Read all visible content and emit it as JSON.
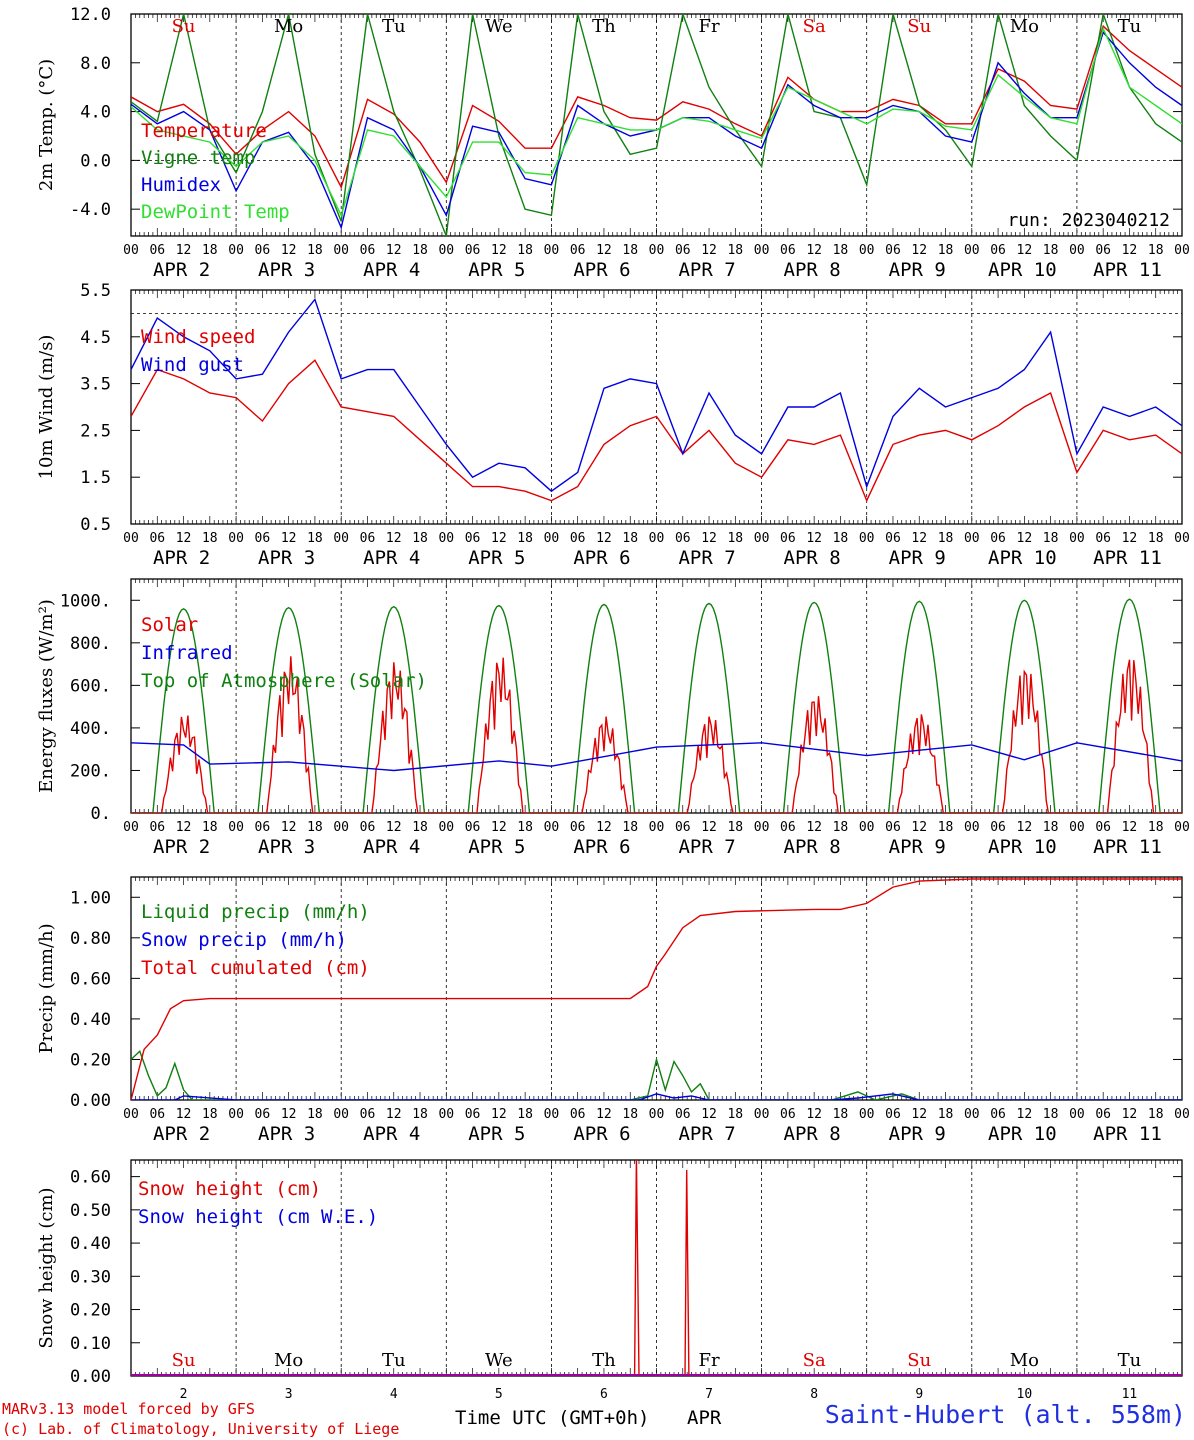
{
  "colors": {
    "red": "#e00000",
    "green": "#108010",
    "blue": "#0000e0",
    "lightgreen": "#30e030",
    "black": "#000000",
    "station": "#2030e0"
  },
  "days": [
    {
      "abbr": "Su",
      "weekend": true
    },
    {
      "abbr": "Mo",
      "weekend": false
    },
    {
      "abbr": "Tu",
      "weekend": false
    },
    {
      "abbr": "We",
      "weekend": false
    },
    {
      "abbr": "Th",
      "weekend": false
    },
    {
      "abbr": "Fr",
      "weekend": false
    },
    {
      "abbr": "Sa",
      "weekend": true
    },
    {
      "abbr": "Su",
      "weekend": true
    },
    {
      "abbr": "Mo",
      "weekend": false
    },
    {
      "abbr": "Tu",
      "weekend": false
    }
  ],
  "date_labels": [
    "APR  2",
    "APR  3",
    "APR  4",
    "APR  5",
    "APR  6",
    "APR  7",
    "APR  8",
    "APR  9",
    "APR 10",
    "APR 11"
  ],
  "hour_ticks": [
    "00",
    "06",
    "12",
    "18"
  ],
  "day_numbers": [
    "2",
    "3",
    "4",
    "5",
    "6",
    "7",
    "8",
    "9",
    "10",
    "11"
  ],
  "run_label": "run: 2023040212",
  "footer": {
    "model": "MARv3.13 model forced by GFS",
    "lab": "(c) Lab. of Climatology, University of Liege",
    "xlabel": "Time UTC (GMT+0h)",
    "month": "APR",
    "station": "Saint-Hubert (alt. 558m)"
  },
  "chart_data": [
    {
      "type": "line",
      "ylabel": "2m Temp. (°C)",
      "ylim": [
        -6.2,
        12.0
      ],
      "yticks": [
        12.0,
        8.0,
        4.0,
        0.0,
        -4.0
      ],
      "ytick_labels": [
        "12.0",
        "8.0",
        "4.0",
        "0.0",
        "-4.0"
      ],
      "reference_line": 0.0,
      "x_hours": [
        0,
        6,
        12,
        18,
        24,
        30,
        36,
        42,
        48,
        54,
        60,
        66,
        72,
        78,
        84,
        90,
        96,
        102,
        108,
        114,
        120,
        126,
        132,
        138,
        144,
        150,
        156,
        162,
        168,
        174,
        180,
        186,
        192,
        198,
        204,
        210,
        216,
        222,
        228,
        234,
        240
      ],
      "series": [
        {
          "name": "Temperature",
          "color": "red",
          "values": [
            5.2,
            4.0,
            4.6,
            3.0,
            0.5,
            2.5,
            4.0,
            2.0,
            -2.2,
            5.0,
            3.8,
            1.5,
            -1.8,
            4.5,
            3.2,
            1.0,
            1.0,
            5.2,
            4.5,
            3.5,
            3.3,
            4.8,
            4.2,
            3.0,
            2.0,
            6.8,
            5.0,
            4.0,
            4.0,
            5.0,
            4.5,
            3.0,
            3.0,
            7.5,
            6.5,
            4.5,
            4.2,
            11.0,
            9.0,
            7.5,
            6.0
          ]
        },
        {
          "name": "Vigne temp",
          "color": "green",
          "values": [
            4.8,
            3.2,
            12.0,
            2.5,
            -1.0,
            4.0,
            12.0,
            0.5,
            -5.0,
            12.0,
            4.0,
            -0.8,
            -6.2,
            12.0,
            2.0,
            -4.0,
            -4.5,
            12.0,
            4.0,
            0.5,
            1.0,
            12.0,
            6.0,
            2.5,
            -0.5,
            12.0,
            4.0,
            3.5,
            -2.0,
            12.0,
            4.5,
            2.5,
            -0.5,
            12.0,
            4.5,
            2.0,
            0.0,
            12.0,
            6.0,
            3.0,
            1.5
          ]
        },
        {
          "name": "Humidex",
          "color": "blue",
          "values": [
            4.6,
            3.0,
            4.0,
            2.5,
            -2.5,
            1.5,
            2.3,
            -0.5,
            -5.5,
            3.5,
            2.5,
            -0.5,
            -4.5,
            2.8,
            2.3,
            -1.5,
            -2.0,
            4.5,
            3.0,
            2.0,
            2.5,
            3.5,
            3.5,
            2.0,
            1.0,
            6.2,
            4.5,
            3.5,
            3.5,
            4.5,
            4.0,
            2.0,
            1.5,
            8.0,
            5.5,
            3.5,
            3.5,
            10.5,
            8.0,
            6.0,
            4.5
          ]
        },
        {
          "name": "DewPoint Temp",
          "color": "lightgreen",
          "values": [
            4.4,
            2.5,
            2.0,
            1.5,
            -0.5,
            1.5,
            2.0,
            0.0,
            -4.5,
            2.5,
            2.0,
            -0.5,
            -3.0,
            1.5,
            1.5,
            -1.0,
            -1.2,
            3.5,
            3.0,
            2.5,
            2.5,
            3.5,
            3.2,
            2.5,
            1.8,
            6.0,
            5.0,
            4.0,
            3.0,
            4.2,
            4.0,
            2.8,
            2.5,
            7.0,
            5.2,
            3.5,
            3.0,
            10.8,
            6.0,
            4.5,
            3.0
          ]
        }
      ]
    },
    {
      "type": "line",
      "ylabel": "10m Wind (m/s)",
      "ylim": [
        0.5,
        5.5
      ],
      "yticks": [
        5.5,
        4.5,
        3.5,
        2.5,
        1.5,
        0.5
      ],
      "ytick_labels": [
        "5.5",
        "4.5",
        "3.5",
        "2.5",
        "1.5",
        "0.5"
      ],
      "reference_line": 5.0,
      "x_hours": [
        0,
        6,
        12,
        18,
        24,
        30,
        36,
        42,
        48,
        54,
        60,
        66,
        72,
        78,
        84,
        90,
        96,
        102,
        108,
        114,
        120,
        126,
        132,
        138,
        144,
        150,
        156,
        162,
        168,
        174,
        180,
        186,
        192,
        198,
        204,
        210,
        216,
        222,
        228,
        234,
        240
      ],
      "series": [
        {
          "name": "Wind speed",
          "color": "red",
          "values": [
            2.8,
            3.8,
            3.6,
            3.3,
            3.2,
            2.7,
            3.5,
            4.0,
            3.0,
            2.9,
            2.8,
            2.3,
            1.8,
            1.3,
            1.3,
            1.2,
            1.0,
            1.3,
            2.2,
            2.6,
            2.8,
            2.0,
            2.5,
            1.8,
            1.5,
            2.3,
            2.2,
            2.4,
            1.0,
            2.2,
            2.4,
            2.5,
            2.3,
            2.6,
            3.0,
            3.3,
            1.6,
            2.5,
            2.3,
            2.4,
            2.0
          ]
        },
        {
          "name": "Wind gust",
          "color": "blue",
          "values": [
            3.8,
            4.9,
            4.5,
            4.2,
            3.6,
            3.7,
            4.6,
            5.3,
            3.6,
            3.8,
            3.8,
            3.0,
            2.2,
            1.5,
            1.8,
            1.7,
            1.2,
            1.6,
            3.4,
            3.6,
            3.5,
            2.0,
            3.3,
            2.4,
            2.0,
            3.0,
            3.0,
            3.3,
            1.3,
            2.8,
            3.4,
            3.0,
            3.2,
            3.4,
            3.8,
            4.6,
            2.0,
            3.0,
            2.8,
            3.0,
            2.6
          ]
        }
      ]
    },
    {
      "type": "line",
      "ylabel": "Energy fluxes (W/m²)",
      "ylim": [
        0,
        1100
      ],
      "yticks": [
        1000,
        800,
        600,
        400,
        200,
        0
      ],
      "ytick_labels": [
        "1000.",
        "800.",
        "600.",
        "400.",
        "200.",
        "0."
      ],
      "daily_series": [
        {
          "name": "Top of Atmosphere (Solar)",
          "color": "green",
          "peaks": [
            960,
            965,
            970,
            975,
            980,
            985,
            990,
            995,
            1000,
            1005
          ]
        },
        {
          "name": "Solar",
          "color": "red",
          "peaks": [
            470,
            740,
            720,
            750,
            460,
            470,
            570,
            480,
            710,
            760
          ]
        }
      ],
      "series": [
        {
          "name": "Infrared",
          "color": "blue",
          "x_hours": [
            0,
            12,
            18,
            36,
            60,
            84,
            96,
            120,
            144,
            168,
            192,
            204,
            216,
            240
          ],
          "values": [
            330,
            320,
            230,
            240,
            200,
            245,
            220,
            310,
            330,
            270,
            320,
            250,
            330,
            245
          ]
        }
      ]
    },
    {
      "type": "line",
      "ylabel": "Precip (mm/h)",
      "ylim": [
        0,
        1.1
      ],
      "yticks": [
        1.0,
        0.8,
        0.6,
        0.4,
        0.2,
        0.0
      ],
      "ytick_labels": [
        "1.00",
        "0.80",
        "0.60",
        "0.40",
        "0.20",
        "0.00"
      ],
      "series": [
        {
          "name": "Liquid precip (mm/h)",
          "color": "green",
          "x_hours": [
            0,
            2,
            4,
            6,
            8,
            10,
            12,
            14,
            24,
            114,
            118,
            120,
            122,
            124,
            126,
            128,
            130,
            132,
            140,
            160,
            166,
            170,
            176,
            180,
            240
          ],
          "values": [
            0.2,
            0.24,
            0.12,
            0.02,
            0.06,
            0.18,
            0.05,
            0.0,
            0.0,
            0.0,
            0.02,
            0.2,
            0.05,
            0.19,
            0.12,
            0.04,
            0.08,
            0.0,
            0.0,
            0.0,
            0.04,
            0.0,
            0.03,
            0.0,
            0.0
          ]
        },
        {
          "name": "Snow precip (mm/h)",
          "color": "blue",
          "x_hours": [
            0,
            10,
            12,
            24,
            116,
            120,
            124,
            128,
            132,
            140,
            160,
            166,
            170,
            174,
            180,
            240
          ],
          "values": [
            0.0,
            0.0,
            0.02,
            0.0,
            0.0,
            0.03,
            0.01,
            0.02,
            0.0,
            0.0,
            0.0,
            0.01,
            0.02,
            0.03,
            0.0,
            0.0
          ]
        },
        {
          "name": "Total cumulated (cm)",
          "color": "red",
          "x_hours": [
            0,
            3,
            6,
            9,
            12,
            18,
            24,
            114,
            118,
            120,
            122,
            126,
            130,
            138,
            156,
            162,
            168,
            174,
            180,
            192,
            240
          ],
          "values": [
            0.0,
            0.25,
            0.32,
            0.45,
            0.49,
            0.5,
            0.5,
            0.5,
            0.56,
            0.66,
            0.72,
            0.85,
            0.91,
            0.93,
            0.94,
            0.94,
            0.97,
            1.05,
            1.08,
            1.09,
            1.09
          ]
        }
      ]
    },
    {
      "type": "line",
      "ylabel": "Snow height (cm)",
      "ylim": [
        0,
        0.65
      ],
      "yticks": [
        0.6,
        0.5,
        0.4,
        0.3,
        0.2,
        0.1,
        0.0
      ],
      "ytick_labels": [
        "0.60",
        "0.50",
        "0.40",
        "0.30",
        "0.20",
        "0.10",
        "0.00"
      ],
      "series": [
        {
          "name": "Snow height (cm)",
          "color": "red",
          "x_hours": [
            0,
            115.0,
            115.4,
            116.0,
            126.5,
            126.9,
            127.4,
            240
          ],
          "values": [
            0,
            0,
            0.66,
            0,
            0,
            0.62,
            0,
            0
          ]
        },
        {
          "name": "Snow height (cm W.E.)",
          "color": "blue",
          "x_hours": [
            0,
            240
          ],
          "values": [
            0,
            0
          ]
        }
      ]
    }
  ]
}
